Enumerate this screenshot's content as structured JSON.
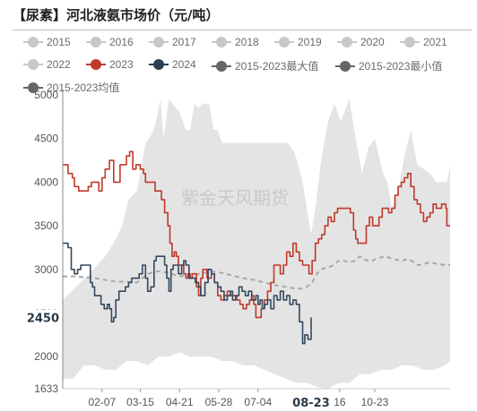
{
  "title": "【尿素】河北液氨市场价（元/吨）",
  "watermark": "紫金天风期货",
  "chart_data": {
    "type": "line",
    "title": "【尿素】河北液氨市场价（元/吨）",
    "xlabel": "",
    "ylabel": "",
    "ylim": [
      1633,
      5000
    ],
    "yticks": [
      2000,
      2500,
      3000,
      3500,
      4000,
      4500,
      5000
    ],
    "ytick_labels": [
      "2000",
      "2500",
      "3000",
      "3500",
      "4000",
      "4500",
      "5000"
    ],
    "ymin_label": "1633",
    "xlim_days": [
      0,
      365
    ],
    "xticks": [
      {
        "label": "02-07",
        "day": 37
      },
      {
        "label": "03-15",
        "day": 73
      },
      {
        "label": "04-21",
        "day": 110
      },
      {
        "label": "05-28",
        "day": 147
      },
      {
        "label": "07-04",
        "day": 184
      },
      {
        "label": "16",
        "day": 261
      },
      {
        "label": "10-23",
        "day": 294
      }
    ],
    "crosshair": {
      "x_label": "08-23",
      "day": 234,
      "y_label": "2450",
      "y_value": 2450
    },
    "legend_placement": "top",
    "grid": true,
    "legend": [
      {
        "name": "2015",
        "color": "#c8c8c8",
        "marker": "dot"
      },
      {
        "name": "2016",
        "color": "#c8c8c8",
        "marker": "dot"
      },
      {
        "name": "2017",
        "color": "#c8c8c8",
        "marker": "dot"
      },
      {
        "name": "2018",
        "color": "#c8c8c8",
        "marker": "dot"
      },
      {
        "name": "2019",
        "color": "#c8c8c8",
        "marker": "dot"
      },
      {
        "name": "2020",
        "color": "#c8c8c8",
        "marker": "dot"
      },
      {
        "name": "2021",
        "color": "#c8c8c8",
        "marker": "dot"
      },
      {
        "name": "2022",
        "color": "#c8c8c8",
        "marker": "dot"
      },
      {
        "name": "2023",
        "color": "#c0392b",
        "marker": "dot"
      },
      {
        "name": "2024",
        "color": "#2c3e50",
        "marker": "dot"
      },
      {
        "name": "2015-2023最大值",
        "color": "#666666",
        "marker": "dot"
      },
      {
        "name": "2015-2023最小值",
        "color": "#666666",
        "marker": "dot"
      },
      {
        "name": "2015-2023均值",
        "color": "#666666",
        "marker": "dot"
      }
    ],
    "band_upper": {
      "x": [
        0,
        25,
        40,
        50,
        56,
        62,
        70,
        78,
        84,
        88,
        92,
        95,
        100,
        110,
        116,
        120,
        124,
        128,
        132,
        138,
        142,
        146,
        150,
        156,
        164,
        170,
        178,
        186,
        194,
        200,
        206,
        212,
        218,
        222,
        226,
        230,
        234,
        238,
        244,
        250,
        256,
        262,
        270,
        276,
        282,
        288,
        294,
        298,
        302,
        306,
        310,
        316,
        322,
        328,
        334,
        340,
        346,
        352,
        358,
        362,
        365
      ],
      "values": [
        2650,
        2950,
        3150,
        3350,
        3500,
        3800,
        3900,
        4450,
        4550,
        4700,
        4950,
        4500,
        4950,
        4800,
        4600,
        4600,
        4900,
        4850,
        4900,
        4900,
        4600,
        4600,
        4450,
        4450,
        4450,
        4450,
        4450,
        4450,
        4450,
        4450,
        4450,
        4450,
        4350,
        4200,
        4000,
        3700,
        3400,
        3700,
        4300,
        4700,
        4900,
        4700,
        4950,
        4500,
        4100,
        4400,
        4500,
        4300,
        4100,
        4000,
        3700,
        3900,
        4300,
        4600,
        4200,
        4150,
        4100,
        4000,
        4000,
        4000,
        4200
      ]
    },
    "band_lower": {
      "x": [
        0,
        10,
        20,
        30,
        40,
        50,
        60,
        70,
        80,
        90,
        100,
        110,
        120,
        130,
        140,
        150,
        160,
        170,
        180,
        190,
        200,
        210,
        220,
        230,
        240,
        250,
        260,
        270,
        280,
        290,
        300,
        310,
        320,
        330,
        340,
        350,
        360,
        365
      ],
      "values": [
        1750,
        1750,
        1900,
        1900,
        1850,
        1850,
        1950,
        1950,
        1900,
        2000,
        2000,
        2050,
        2000,
        2000,
        2000,
        1950,
        1950,
        1900,
        1900,
        1850,
        1800,
        1750,
        1700,
        1700,
        1650,
        1633,
        1700,
        1700,
        1800,
        1800,
        1850,
        1850,
        1900,
        1900,
        1850,
        1850,
        1900,
        1950
      ]
    },
    "series": [
      {
        "name": "2015-2023均值",
        "style": "dashed",
        "color": "#a8a8a8",
        "x": [
          0,
          10,
          20,
          30,
          40,
          50,
          60,
          70,
          80,
          90,
          100,
          110,
          120,
          130,
          140,
          150,
          160,
          170,
          180,
          190,
          200,
          210,
          220,
          225,
          230,
          235,
          240,
          245,
          250,
          255,
          260,
          265,
          270,
          275,
          280,
          285,
          290,
          295,
          300,
          305,
          310,
          315,
          320,
          325,
          330,
          335,
          340,
          345,
          350,
          355,
          360,
          365
        ],
        "values": [
          2920,
          2920,
          2910,
          2900,
          2880,
          2860,
          2860,
          2850,
          2950,
          2980,
          2960,
          2920,
          2940,
          2950,
          2980,
          2960,
          2930,
          2900,
          2880,
          2850,
          2820,
          2800,
          2780,
          2780,
          2800,
          2850,
          2960,
          3010,
          3020,
          3050,
          3100,
          3100,
          3080,
          3100,
          3150,
          3110,
          3090,
          3120,
          3140,
          3150,
          3120,
          3110,
          3100,
          3120,
          3090,
          3050,
          3060,
          3080,
          3070,
          3060,
          3050,
          3050
        ]
      },
      {
        "name": "2023",
        "style": "solid",
        "color": "#c0392b",
        "x": [
          0,
          4,
          5,
          9,
          11,
          15,
          20,
          24,
          27,
          31,
          34,
          37,
          40,
          44,
          48,
          52,
          54,
          58,
          60,
          63,
          66,
          69,
          73,
          76,
          78,
          80,
          84,
          87,
          90,
          93,
          96,
          99,
          101,
          103,
          105,
          107,
          109,
          112,
          114,
          116,
          118,
          120,
          122,
          126,
          128,
          130,
          132,
          134,
          136,
          140,
          143,
          146,
          149,
          152,
          155,
          158,
          161,
          164,
          167,
          170,
          173,
          176,
          178,
          180,
          182,
          184,
          187,
          190,
          193,
          196,
          199,
          202,
          205,
          208,
          211,
          214,
          217,
          220,
          223,
          226,
          229,
          232,
          235,
          238,
          241,
          244,
          247,
          250,
          253,
          256,
          259,
          262,
          265,
          268,
          271,
          274,
          276,
          278,
          280,
          283,
          286,
          289,
          292,
          295,
          298,
          301,
          304,
          307,
          310,
          313,
          316,
          319,
          322,
          325,
          328,
          331,
          334,
          337,
          340,
          343,
          346,
          349,
          352,
          355,
          357,
          359,
          361,
          362,
          365
        ],
        "values": [
          4200,
          4200,
          4100,
          4050,
          3950,
          3900,
          3900,
          3950,
          4000,
          4000,
          3900,
          4050,
          4150,
          4250,
          4000,
          4000,
          4200,
          4200,
          4300,
          4350,
          4150,
          4200,
          4150,
          4100,
          4000,
          4000,
          4000,
          3900,
          3900,
          3800,
          3650,
          3500,
          3300,
          3150,
          3200,
          3150,
          3050,
          3050,
          2950,
          2900,
          2950,
          2900,
          2950,
          2800,
          2700,
          2900,
          3000,
          3000,
          2900,
          2950,
          2850,
          2700,
          2650,
          2700,
          2750,
          2700,
          2700,
          2650,
          2600,
          2550,
          2600,
          2650,
          2700,
          2600,
          2450,
          2450,
          2550,
          2650,
          2750,
          2850,
          3050,
          3050,
          2950,
          3050,
          3200,
          3150,
          3300,
          3200,
          3100,
          3050,
          3050,
          2950,
          3100,
          3300,
          3350,
          3400,
          3500,
          3600,
          3550,
          3650,
          3700,
          3700,
          3700,
          3700,
          3650,
          3450,
          3350,
          3300,
          3300,
          3300,
          3500,
          3600,
          3500,
          3500,
          3600,
          3700,
          3700,
          3650,
          3700,
          3850,
          3950,
          4000,
          4050,
          4100,
          3950,
          3800,
          3750,
          3650,
          3550,
          3600,
          3650,
          3750,
          3700,
          3700,
          3750,
          3750,
          3700,
          3500,
          3500
        ]
      },
      {
        "name": "2024",
        "style": "solid",
        "color": "#34495e",
        "x": [
          0,
          3,
          5,
          8,
          11,
          14,
          17,
          20,
          23,
          26,
          28,
          30,
          33,
          36,
          39,
          42,
          44,
          46,
          48,
          50,
          53,
          56,
          59,
          62,
          65,
          67,
          69,
          72,
          75,
          78,
          80,
          83,
          86,
          88,
          90,
          93,
          96,
          98,
          100,
          102,
          104,
          106,
          109,
          112,
          114,
          116,
          119,
          122,
          125,
          128,
          130,
          132,
          134,
          137,
          140,
          143,
          146,
          149,
          152,
          155,
          158,
          160,
          163,
          166,
          169,
          172,
          175,
          178,
          180,
          182,
          184,
          186,
          188,
          190,
          193,
          196,
          199,
          202,
          205,
          208,
          211,
          214,
          217,
          220,
          223,
          226,
          228,
          231,
          234
        ],
        "values": [
          3300,
          3300,
          3250,
          3000,
          2950,
          3000,
          3050,
          3050,
          3050,
          2850,
          2800,
          2700,
          2700,
          2600,
          2550,
          2600,
          2550,
          2400,
          2450,
          2650,
          2750,
          2750,
          2800,
          2850,
          2900,
          2900,
          2900,
          2950,
          3050,
          2900,
          2750,
          2800,
          3100,
          3150,
          3150,
          3150,
          3050,
          2900,
          2750,
          3000,
          3050,
          3050,
          2950,
          3050,
          3100,
          3050,
          2900,
          2900,
          2850,
          2800,
          2700,
          2700,
          2850,
          3000,
          2950,
          2850,
          2800,
          2750,
          2650,
          2700,
          2750,
          2650,
          2700,
          2800,
          2750,
          2700,
          2750,
          2650,
          2650,
          2700,
          2600,
          2650,
          2550,
          2600,
          2650,
          2550,
          2700,
          2650,
          2750,
          2650,
          2700,
          2600,
          2650,
          2600,
          2400,
          2150,
          2250,
          2200,
          2450
        ]
      }
    ]
  }
}
